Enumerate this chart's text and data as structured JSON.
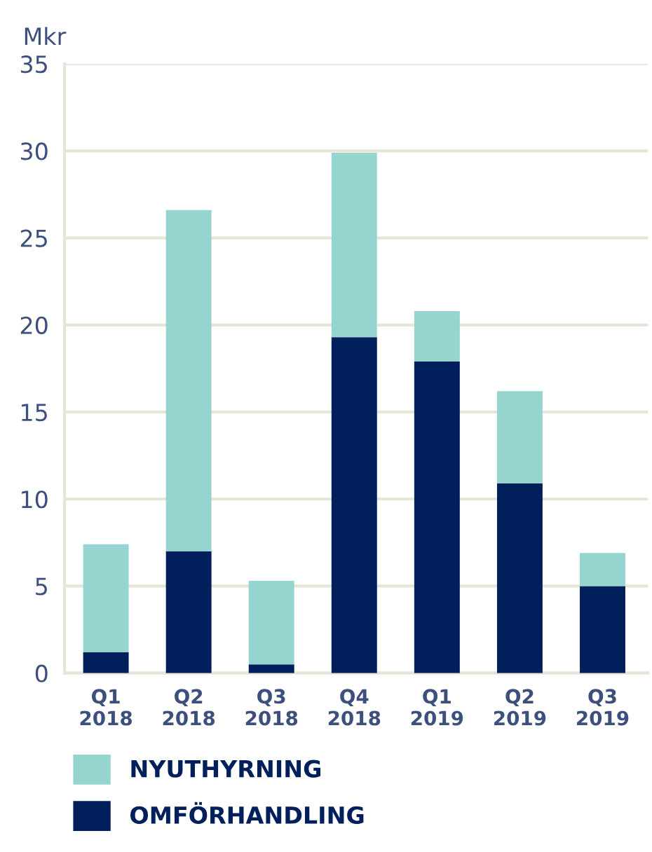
{
  "chart_data": {
    "type": "bar",
    "stacked": true,
    "ylabel": "Mkr",
    "categories": [
      "Q1\n2018",
      "Q2\n2018",
      "Q3\n2018",
      "Q4\n2018",
      "Q1\n2019",
      "Q2\n2019",
      "Q3\n2019"
    ],
    "series": [
      {
        "name": "OMFÖRHANDLING",
        "color": "#001f5b",
        "values": [
          1.2,
          7.0,
          0.5,
          19.3,
          17.9,
          10.9,
          5.0
        ]
      },
      {
        "name": "NYUTHYRNING",
        "color": "#96d4d0",
        "values": [
          6.2,
          19.6,
          4.8,
          10.6,
          2.9,
          5.3,
          1.9
        ]
      }
    ],
    "ylim": [
      0,
      35
    ],
    "yticks": [
      0,
      5,
      10,
      15,
      20,
      25,
      30,
      35
    ],
    "grid": "y",
    "legend": "bottom"
  }
}
